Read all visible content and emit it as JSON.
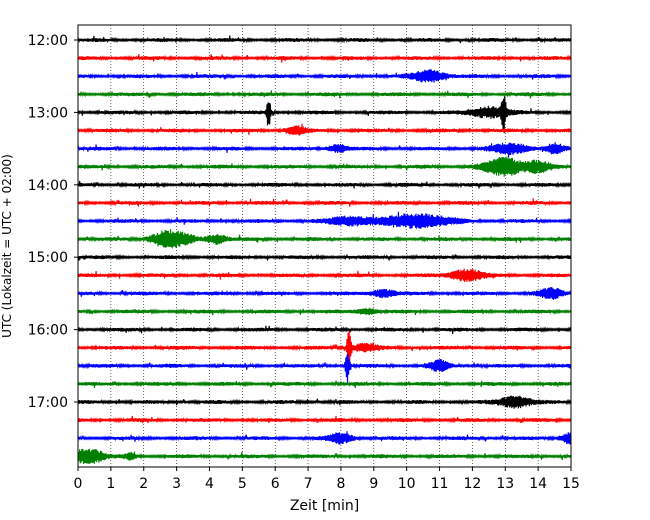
{
  "chart_data": {
    "type": "line",
    "subtype": "helicorder",
    "xlabel": "Zeit  [min]",
    "ylabel": "UTC (Lokalzeit = UTC + 02:00)",
    "xlim": [
      0,
      15
    ],
    "x_ticks": [
      0,
      1,
      2,
      3,
      4,
      5,
      6,
      7,
      8,
      9,
      10,
      11,
      12,
      13,
      14,
      15
    ],
    "x_tick_labels": [
      "0",
      "1",
      "2",
      "3",
      "4",
      "5",
      "6",
      "7",
      "8",
      "9",
      "10",
      "11",
      "12",
      "13",
      "14",
      "15"
    ],
    "y_tick_labels": [
      "12:00",
      "13:00",
      "14:00",
      "15:00",
      "16:00",
      "17:00"
    ],
    "vertical_grid": true,
    "trace_colors": [
      "#000000",
      "#ff0000",
      "#0000ff",
      "#008000"
    ],
    "lines_per_hour": 4,
    "traces": [
      {
        "start": "12:00",
        "color": "#000000",
        "bursts": []
      },
      {
        "start": "12:15",
        "color": "#ff0000",
        "bursts": []
      },
      {
        "start": "12:30",
        "color": "#0000ff",
        "bursts": [
          {
            "t": 10.7,
            "amp": 6,
            "dur": 0.8
          }
        ]
      },
      {
        "start": "12:45",
        "color": "#008000",
        "bursts": []
      },
      {
        "start": "13:00",
        "color": "#000000",
        "bursts": [
          {
            "t": 5.8,
            "amp": 16,
            "dur": 0.1
          },
          {
            "t": 12.5,
            "amp": 6,
            "dur": 0.9
          },
          {
            "t": 12.95,
            "amp": 20,
            "dur": 0.1
          }
        ]
      },
      {
        "start": "13:15",
        "color": "#ff0000",
        "bursts": [
          {
            "t": 6.6,
            "amp": 4,
            "dur": 0.5
          }
        ]
      },
      {
        "start": "13:30",
        "color": "#0000ff",
        "bursts": [
          {
            "t": 7.9,
            "amp": 4,
            "dur": 0.5
          },
          {
            "t": 13.2,
            "amp": 5,
            "dur": 1.0
          },
          {
            "t": 14.5,
            "amp": 5,
            "dur": 0.4
          }
        ]
      },
      {
        "start": "13:45",
        "color": "#008000",
        "bursts": [
          {
            "t": 13.0,
            "amp": 9,
            "dur": 1.0
          },
          {
            "t": 14.0,
            "amp": 5,
            "dur": 0.6
          }
        ]
      },
      {
        "start": "14:00",
        "color": "#000000",
        "bursts": []
      },
      {
        "start": "14:15",
        "color": "#ff0000",
        "bursts": []
      },
      {
        "start": "14:30",
        "color": "#0000ff",
        "bursts": [
          {
            "t": 8.3,
            "amp": 5,
            "dur": 1.0
          },
          {
            "t": 10.3,
            "amp": 7,
            "dur": 1.6
          }
        ]
      },
      {
        "start": "14:45",
        "color": "#008000",
        "bursts": [
          {
            "t": 2.7,
            "amp": 8,
            "dur": 0.8
          },
          {
            "t": 4.2,
            "amp": 5,
            "dur": 0.5
          },
          {
            "t": 3.3,
            "amp": 3,
            "dur": 0.6
          }
        ]
      },
      {
        "start": "15:00",
        "color": "#000000",
        "bursts": []
      },
      {
        "start": "15:15",
        "color": "#ff0000",
        "bursts": [
          {
            "t": 11.8,
            "amp": 6,
            "dur": 0.8
          }
        ]
      },
      {
        "start": "15:30",
        "color": "#0000ff",
        "bursts": [
          {
            "t": 9.3,
            "amp": 4,
            "dur": 0.6
          },
          {
            "t": 14.4,
            "amp": 5,
            "dur": 0.6
          }
        ]
      },
      {
        "start": "15:45",
        "color": "#008000",
        "bursts": [
          {
            "t": 8.8,
            "amp": 3,
            "dur": 0.5
          }
        ]
      },
      {
        "start": "16:00",
        "color": "#000000",
        "bursts": []
      },
      {
        "start": "16:15",
        "color": "#ff0000",
        "bursts": [
          {
            "t": 8.25,
            "amp": 20,
            "dur": 0.1
          },
          {
            "t": 8.7,
            "amp": 4,
            "dur": 0.6
          }
        ]
      },
      {
        "start": "16:30",
        "color": "#0000ff",
        "bursts": [
          {
            "t": 8.2,
            "amp": 16,
            "dur": 0.1
          },
          {
            "t": 11.0,
            "amp": 5,
            "dur": 0.5
          }
        ]
      },
      {
        "start": "16:45",
        "color": "#008000",
        "bursts": []
      },
      {
        "start": "17:00",
        "color": "#000000",
        "bursts": [
          {
            "t": 13.3,
            "amp": 6,
            "dur": 0.8
          }
        ]
      },
      {
        "start": "17:15",
        "color": "#ff0000",
        "bursts": []
      },
      {
        "start": "17:30",
        "color": "#0000ff",
        "bursts": [
          {
            "t": 8.0,
            "amp": 5,
            "dur": 0.6
          },
          {
            "t": 15.0,
            "amp": 6,
            "dur": 0.5
          }
        ]
      },
      {
        "start": "17:45",
        "color": "#008000",
        "bursts": [
          {
            "t": 0.1,
            "amp": 6,
            "dur": 0.4
          },
          {
            "t": 0.5,
            "amp": 6,
            "dur": 0.5
          },
          {
            "t": 1.6,
            "amp": 3,
            "dur": 0.3
          }
        ]
      }
    ]
  }
}
